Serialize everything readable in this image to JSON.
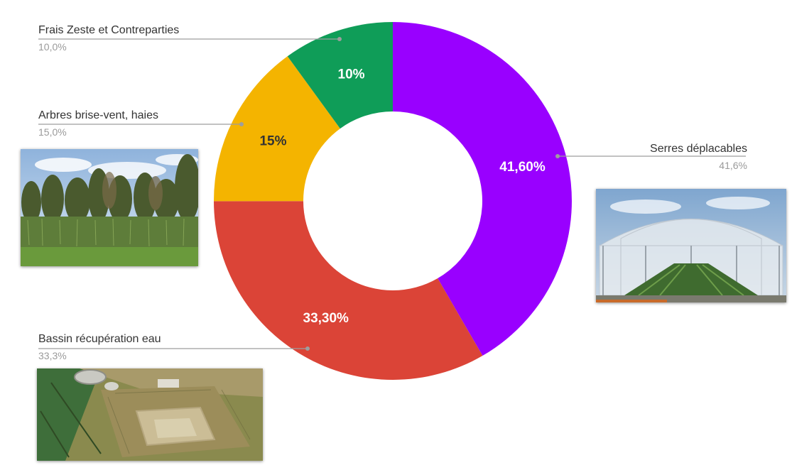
{
  "chart_data": {
    "type": "pie",
    "donut": true,
    "start_angle_deg": 0,
    "direction": "clockwise",
    "slices": [
      {
        "name": "Serres déplacables",
        "value": 41.6,
        "label": "41,60%",
        "legend_value": "41,6%",
        "color": "#9900ff",
        "label_color": "#ffffff"
      },
      {
        "name": "Bassin récupération eau",
        "value": 33.3,
        "label": "33,30%",
        "legend_value": "33,3%",
        "color": "#db4437",
        "label_color": "#ffffff"
      },
      {
        "name": "Arbres brise-vent, haies",
        "value": 15.0,
        "label": "15%",
        "legend_value": "15,0%",
        "color": "#f4b400",
        "label_color": "#333333"
      },
      {
        "name": "Frais Zeste et Contreparties",
        "value": 10.0,
        "label": "10%",
        "legend_value": "10,0%",
        "color": "#0f9d58",
        "label_color": "#ffffff"
      }
    ]
  },
  "images": [
    {
      "name": "hedges-photo",
      "depicts": "rangée d'arbres et haies"
    },
    {
      "name": "greenhouse-photo",
      "depicts": "serre tunnel"
    },
    {
      "name": "pond-photo",
      "depicts": "bassin de récupération vu du ciel"
    }
  ]
}
